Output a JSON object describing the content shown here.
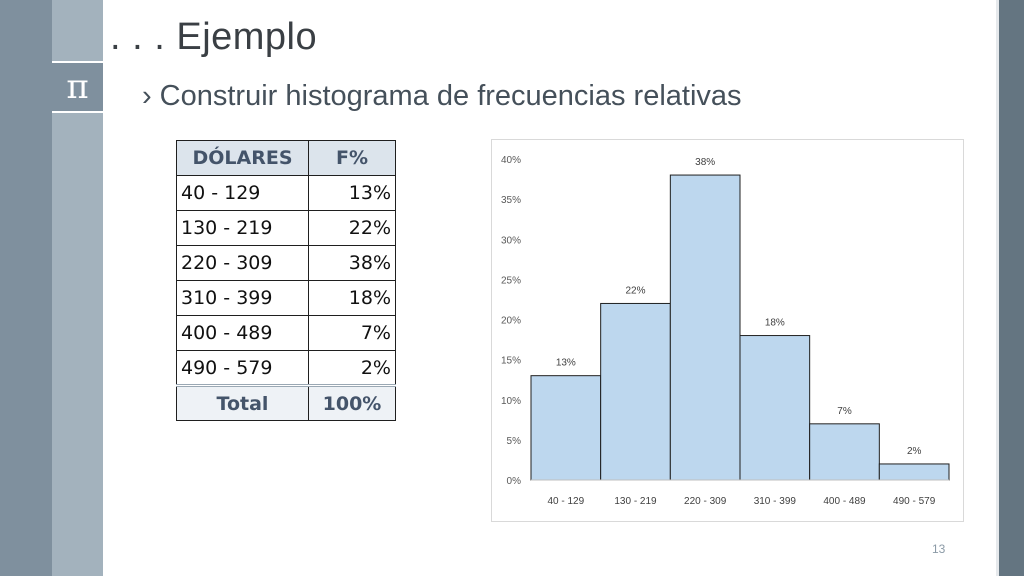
{
  "slide": {
    "title": ". . . Ejemplo",
    "subtitle_bullet": "›",
    "subtitle": "Construir histograma de frecuencias relativas",
    "pi_symbol": "π",
    "page_number": "13"
  },
  "table": {
    "headers": [
      "DÓLARES",
      "F%"
    ],
    "rows": [
      [
        "40 - 129",
        "13%"
      ],
      [
        "130 - 219",
        "22%"
      ],
      [
        "220 - 309",
        "38%"
      ],
      [
        "310 - 399",
        "18%"
      ],
      [
        "400 - 489",
        "7%"
      ],
      [
        "490 - 579",
        "2%"
      ]
    ],
    "total_label": "Total",
    "total_value": "100%"
  },
  "chart_data": {
    "type": "bar",
    "categories": [
      "40 - 129",
      "130 - 219",
      "220 - 309",
      "310 - 399",
      "400 - 489",
      "490 - 579"
    ],
    "values": [
      13,
      22,
      38,
      18,
      7,
      2
    ],
    "data_labels": [
      "13%",
      "22%",
      "38%",
      "18%",
      "7%",
      "2%"
    ],
    "ylim": [
      0,
      40
    ],
    "yticks": [
      0,
      5,
      10,
      15,
      20,
      25,
      30,
      35,
      40
    ],
    "ytick_labels": [
      "0%",
      "5%",
      "10%",
      "15%",
      "20%",
      "25%",
      "30%",
      "35%",
      "40%"
    ],
    "title": "",
    "xlabel": "",
    "ylabel": "",
    "grid": false,
    "bar_color": "#bdd7ee",
    "bar_edge_color": "#1f1f1f"
  }
}
